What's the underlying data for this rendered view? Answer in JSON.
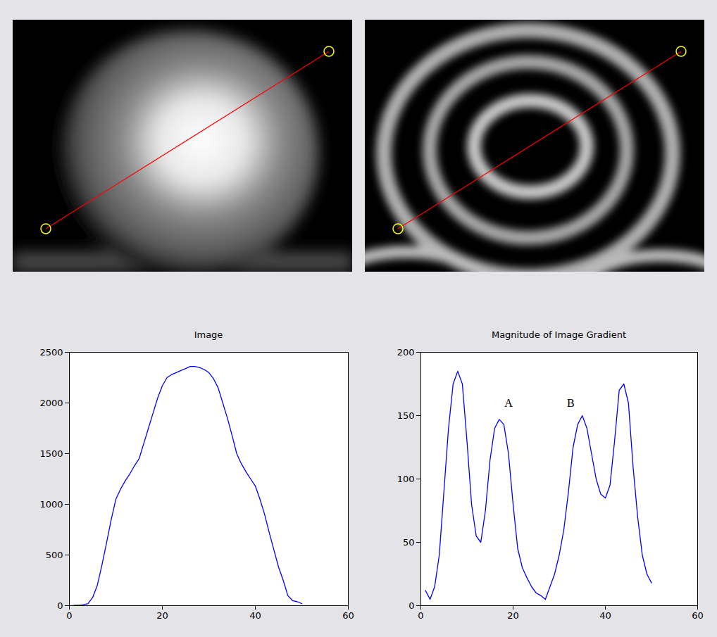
{
  "chart_data": [
    {
      "type": "line",
      "title": "Image",
      "x": [
        1,
        2,
        3,
        4,
        5,
        6,
        7,
        8,
        9,
        10,
        11,
        12,
        13,
        14,
        15,
        16,
        17,
        18,
        19,
        20,
        21,
        22,
        23,
        24,
        25,
        26,
        27,
        28,
        29,
        30,
        31,
        32,
        33,
        34,
        35,
        36,
        37,
        38,
        39,
        40,
        41,
        42,
        43,
        44,
        45,
        46,
        47,
        48,
        49,
        50
      ],
      "values": [
        5,
        5,
        10,
        20,
        80,
        200,
        400,
        620,
        850,
        1050,
        1150,
        1230,
        1300,
        1380,
        1450,
        1600,
        1750,
        1900,
        2050,
        2170,
        2250,
        2280,
        2300,
        2320,
        2340,
        2360,
        2360,
        2350,
        2330,
        2300,
        2240,
        2150,
        2000,
        1850,
        1680,
        1500,
        1400,
        1320,
        1250,
        1180,
        1050,
        900,
        720,
        550,
        380,
        250,
        100,
        50,
        40,
        20
      ],
      "color": "#0000ff",
      "xlim": [
        0,
        60
      ],
      "xticks": [
        0,
        20,
        40,
        60
      ],
      "ylim": [
        0,
        2500
      ],
      "yticks": [
        0,
        500,
        1000,
        1500,
        2000,
        2500
      ],
      "grid": false
    },
    {
      "type": "line",
      "title": "Magnitude of Image Gradient",
      "x": [
        1,
        2,
        3,
        4,
        5,
        6,
        7,
        8,
        9,
        10,
        11,
        12,
        13,
        14,
        15,
        16,
        17,
        18,
        19,
        20,
        21,
        22,
        23,
        24,
        25,
        26,
        27,
        28,
        29,
        30,
        31,
        32,
        33,
        34,
        35,
        36,
        37,
        38,
        39,
        40,
        41,
        42,
        43,
        44,
        45,
        46,
        47,
        48,
        49,
        50
      ],
      "values": [
        12,
        5,
        15,
        40,
        90,
        140,
        175,
        185,
        175,
        130,
        80,
        55,
        50,
        75,
        115,
        140,
        147,
        143,
        120,
        80,
        45,
        30,
        22,
        15,
        10,
        8,
        5,
        15,
        25,
        40,
        60,
        90,
        125,
        143,
        150,
        140,
        120,
        100,
        88,
        85,
        95,
        130,
        170,
        175,
        160,
        110,
        70,
        40,
        25,
        18
      ],
      "color": "#0000ff",
      "xlim": [
        0,
        60
      ],
      "xticks": [
        0,
        20,
        40,
        60
      ],
      "ylim": [
        0,
        200
      ],
      "yticks": [
        0,
        50,
        100,
        150,
        200
      ],
      "grid": false,
      "annotations": [
        {
          "text": "A",
          "x": 19,
          "y": 160
        },
        {
          "text": "B",
          "x": 32.5,
          "y": 160
        }
      ]
    }
  ]
}
